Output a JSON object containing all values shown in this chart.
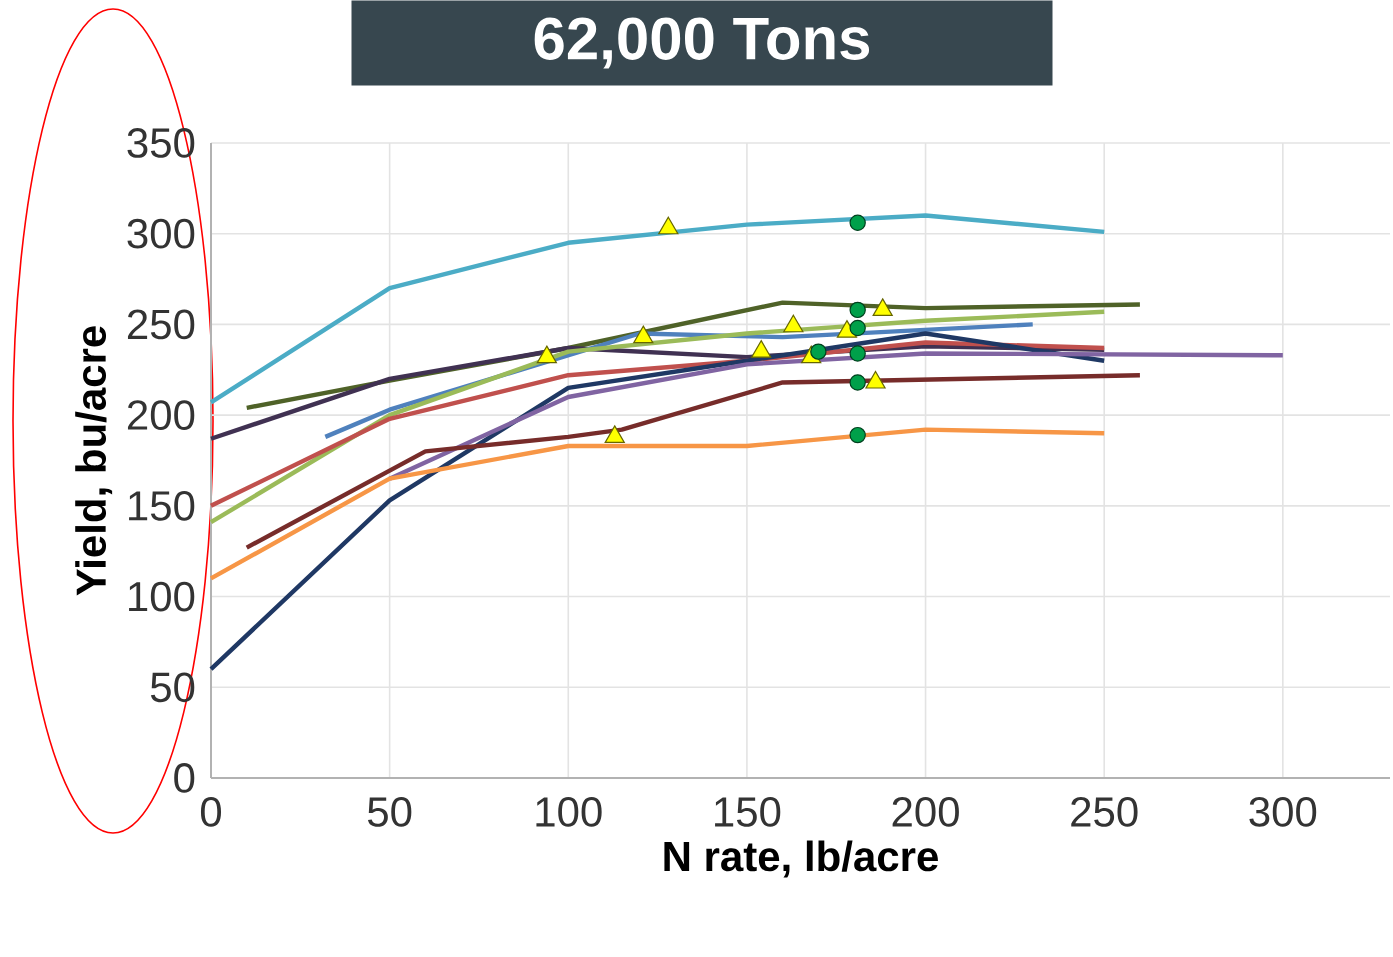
{
  "chart_data": {
    "type": "line",
    "title": "62,000 Tons",
    "xlabel": "N rate, lb/acre",
    "ylabel": "Yield, bu/acre",
    "xlim": [
      0,
      330
    ],
    "ylim": [
      0,
      350
    ],
    "xticks": [
      0,
      50,
      100,
      150,
      200,
      250,
      300
    ],
    "yticks": [
      0,
      50,
      100,
      150,
      200,
      250,
      300,
      350
    ],
    "grid": true,
    "series": [
      {
        "color": "#4bacc6",
        "x": [
          0,
          50,
          100,
          150,
          200,
          250
        ],
        "values": [
          207,
          270,
          295,
          305,
          310,
          301
        ]
      },
      {
        "color": "#4f6228",
        "x": [
          10,
          50,
          100,
          160,
          200,
          260
        ],
        "values": [
          204,
          219,
          237,
          262,
          259,
          261
        ]
      },
      {
        "color": "#403152",
        "x": [
          0,
          50,
          100,
          150,
          200,
          250
        ],
        "values": [
          187,
          220,
          237,
          232,
          238,
          236
        ]
      },
      {
        "color": "#4f81bd",
        "x": [
          32,
          50,
          120,
          160,
          230
        ],
        "values": [
          188,
          203,
          245,
          243,
          250
        ]
      },
      {
        "color": "#9bbb59",
        "x": [
          0,
          50,
          100,
          150,
          200,
          250
        ],
        "values": [
          141,
          200,
          235,
          245,
          252,
          257
        ]
      },
      {
        "color": "#c0504d",
        "x": [
          0,
          50,
          100,
          150,
          200,
          250
        ],
        "values": [
          150,
          198,
          222,
          230,
          240,
          237
        ]
      },
      {
        "color": "#1f3864",
        "x": [
          0,
          50,
          100,
          150,
          200,
          250
        ],
        "values": [
          60,
          153,
          215,
          230,
          245,
          230
        ]
      },
      {
        "color": "#8064a2",
        "x": [
          50,
          100,
          150,
          200,
          300
        ],
        "values": [
          165,
          210,
          228,
          234,
          233
        ]
      },
      {
        "color": "#772c2a",
        "x": [
          10,
          60,
          100,
          115,
          160,
          260
        ],
        "values": [
          127,
          180,
          188,
          192,
          218,
          222
        ]
      },
      {
        "color": "#f79646",
        "x": [
          0,
          50,
          100,
          150,
          200,
          250
        ],
        "values": [
          110,
          165,
          183,
          183,
          192,
          190
        ]
      },
      {
        "type": "scatter",
        "marker": "triangle",
        "color": "#ffff00",
        "x": [
          128,
          94,
          121,
          163,
          154,
          168,
          178,
          188,
          186,
          113
        ],
        "values": [
          303,
          232,
          243,
          249,
          235,
          232,
          246,
          258,
          218,
          188
        ]
      },
      {
        "type": "scatter",
        "marker": "circle",
        "color": "#00a04a",
        "x": [
          181,
          181,
          181,
          181,
          181,
          181,
          170
        ],
        "values": [
          306,
          258,
          248,
          234,
          218,
          189,
          235
        ]
      }
    ]
  }
}
